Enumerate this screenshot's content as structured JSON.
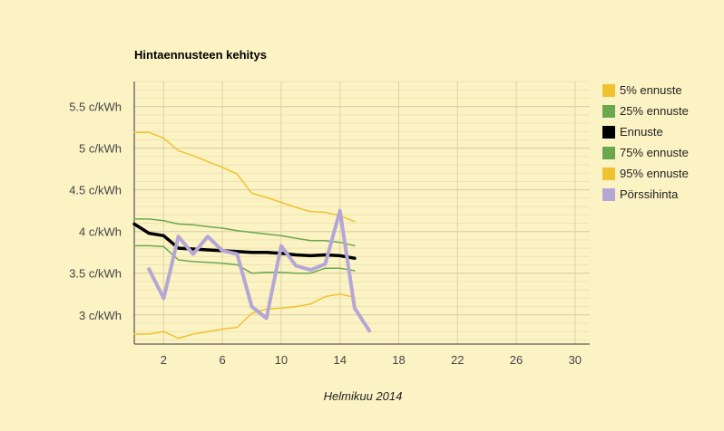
{
  "chart_data": {
    "type": "line",
    "title": "Hintaennusteen kehitys",
    "xlabel": "Helmikuu 2014",
    "ylabel": "",
    "xlim": [
      0,
      31
    ],
    "ylim": [
      2.65,
      5.8
    ],
    "x_ticks": [
      2,
      6,
      10,
      14,
      18,
      22,
      26,
      30
    ],
    "y_ticks": [
      {
        "value": 3.0,
        "label": "3 c/kWh"
      },
      {
        "value": 3.5,
        "label": "3.5 c/kWh"
      },
      {
        "value": 4.0,
        "label": "4 c/kWh"
      },
      {
        "value": 4.5,
        "label": "4.5 c/kWh"
      },
      {
        "value": 5.0,
        "label": "5 c/kWh"
      },
      {
        "value": 5.5,
        "label": "5.5 c/kWh"
      }
    ],
    "grid": true,
    "legend_position": "right",
    "series": [
      {
        "name": "5% ennuste",
        "color": "#f0c232",
        "width": 1.5,
        "x": [
          0,
          1,
          2,
          3,
          4,
          5,
          6,
          7,
          8,
          9,
          10,
          11,
          12,
          13,
          14,
          15
        ],
        "y": [
          2.77,
          2.77,
          2.8,
          2.72,
          2.77,
          2.8,
          2.83,
          2.85,
          3.02,
          3.07,
          3.08,
          3.1,
          3.13,
          3.22,
          3.25,
          3.21
        ]
      },
      {
        "name": "25% ennuste",
        "color": "#6aa84f",
        "width": 1.5,
        "x": [
          0,
          1,
          2,
          3,
          4,
          5,
          6,
          7,
          8,
          9,
          10,
          11,
          12,
          13,
          14,
          15
        ],
        "y": [
          3.83,
          3.83,
          3.82,
          3.66,
          3.64,
          3.63,
          3.62,
          3.6,
          3.5,
          3.51,
          3.51,
          3.5,
          3.5,
          3.56,
          3.56,
          3.53
        ]
      },
      {
        "name": "Ennuste",
        "color": "#000000",
        "width": 3.5,
        "x": [
          0,
          1,
          2,
          3,
          4,
          5,
          6,
          7,
          8,
          9,
          10,
          11,
          12,
          13,
          14,
          15
        ],
        "y": [
          4.09,
          3.98,
          3.95,
          3.8,
          3.79,
          3.78,
          3.77,
          3.76,
          3.75,
          3.75,
          3.74,
          3.72,
          3.71,
          3.72,
          3.71,
          3.68
        ]
      },
      {
        "name": "75% ennuste",
        "color": "#6aa84f",
        "width": 1.5,
        "x": [
          0,
          1,
          2,
          3,
          4,
          5,
          6,
          7,
          8,
          9,
          10,
          11,
          12,
          13,
          14,
          15
        ],
        "y": [
          4.15,
          4.15,
          4.13,
          4.09,
          4.08,
          4.06,
          4.04,
          4.01,
          3.99,
          3.97,
          3.95,
          3.92,
          3.89,
          3.89,
          3.87,
          3.83
        ]
      },
      {
        "name": "95% ennuste",
        "color": "#f0c232",
        "width": 1.5,
        "x": [
          0,
          1,
          2,
          3,
          4,
          5,
          6,
          7,
          8,
          9,
          10,
          11,
          12,
          13,
          14,
          15
        ],
        "y": [
          5.19,
          5.19,
          5.12,
          4.97,
          4.91,
          4.84,
          4.77,
          4.69,
          4.46,
          4.41,
          4.35,
          4.29,
          4.24,
          4.23,
          4.19,
          4.12
        ]
      },
      {
        "name": "Pörssihinta",
        "color": "#b4a7d6",
        "width": 4,
        "x": [
          1,
          2,
          3,
          4,
          5,
          6,
          7,
          8,
          9,
          10,
          11,
          12,
          13,
          14,
          15,
          16
        ],
        "y": [
          3.55,
          3.2,
          3.94,
          3.73,
          3.94,
          3.77,
          3.73,
          3.1,
          2.96,
          3.83,
          3.59,
          3.54,
          3.61,
          4.25,
          3.08,
          2.81
        ]
      }
    ]
  }
}
